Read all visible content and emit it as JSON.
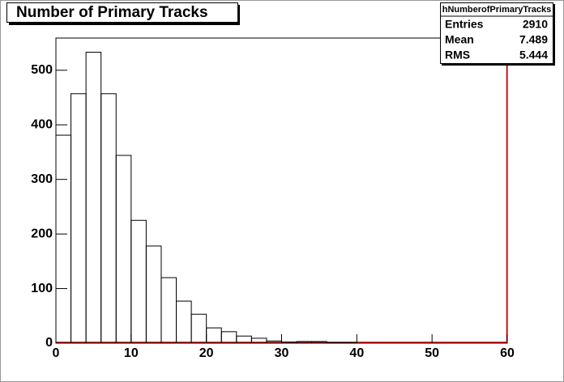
{
  "chart_data": {
    "type": "histogram",
    "title": "Number of Primary Tracks",
    "bins": [
      0,
      2,
      4,
      6,
      8,
      10,
      12,
      14,
      16,
      18,
      20,
      22,
      24,
      26,
      28,
      30,
      32,
      34,
      36,
      38,
      40,
      42,
      44,
      46,
      48,
      50,
      52,
      54,
      56,
      58,
      60
    ],
    "values": [
      381,
      457,
      533,
      457,
      344,
      225,
      178,
      120,
      77,
      53,
      28,
      21,
      13,
      9,
      4,
      2,
      3,
      3,
      1,
      1,
      0,
      0,
      0,
      0,
      0,
      0,
      0,
      0,
      0,
      0
    ],
    "color": "#000000",
    "xlim": [
      0,
      60
    ],
    "xticks": [
      0,
      10,
      20,
      30,
      40,
      50,
      60
    ],
    "ylim": [
      0,
      559
    ],
    "yticks": [
      0,
      100,
      200,
      300,
      400,
      500
    ],
    "stats": {
      "name": "hNumberofPrimaryTracks",
      "rows": [
        {
          "label": "Entries",
          "value": 2910
        },
        {
          "label": "Mean",
          "value": 7.489
        },
        {
          "label": "RMS",
          "value": 5.444
        }
      ]
    }
  }
}
